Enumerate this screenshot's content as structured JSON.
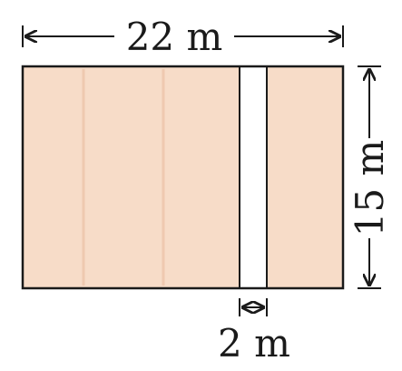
{
  "figure": {
    "width_label": "22 m",
    "height_label": "15 m",
    "path_label": "2 m"
  },
  "colors": {
    "field_fill": "#f7dcc8",
    "field_grain": "#efc9b0",
    "path_fill": "#ffffff",
    "stroke": "#1a1a1a"
  }
}
